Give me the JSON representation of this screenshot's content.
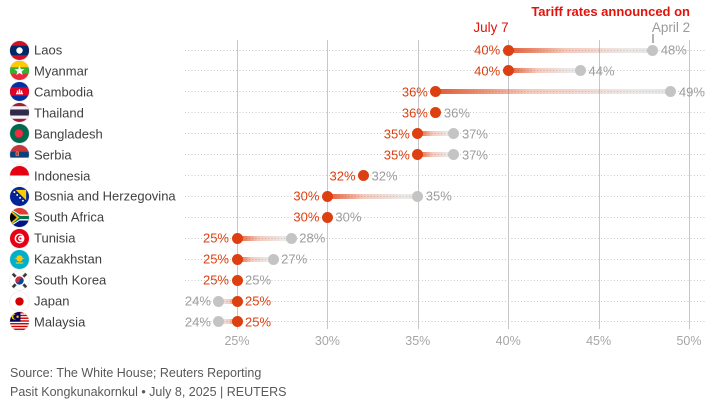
{
  "chart_data": {
    "type": "dumbbell",
    "title": "Tariff rates announced on",
    "series": [
      {
        "name": "July 7",
        "color": "#dd3f10"
      },
      {
        "name": "April 2",
        "color": "#c4c4c4"
      }
    ],
    "x_ticks": [
      "25%",
      "30%",
      "35%",
      "40%",
      "45%",
      "50%"
    ],
    "x_range": [
      25,
      50
    ],
    "unit": "%",
    "legend_position": "top",
    "grid": "vertical solid gridlines, dotted horizontal row leaders",
    "countries": [
      {
        "name": "Laos",
        "flag": "laos",
        "july7": 40,
        "april2": 48
      },
      {
        "name": "Myanmar",
        "flag": "myanmar",
        "july7": 40,
        "april2": 44
      },
      {
        "name": "Cambodia",
        "flag": "cambodia",
        "july7": 36,
        "april2": 49
      },
      {
        "name": "Thailand",
        "flag": "thailand",
        "july7": 36,
        "april2": 36
      },
      {
        "name": "Bangladesh",
        "flag": "bangladesh",
        "july7": 35,
        "april2": 37
      },
      {
        "name": "Serbia",
        "flag": "serbia",
        "july7": 35,
        "april2": 37
      },
      {
        "name": "Indonesia",
        "flag": "indonesia",
        "july7": 32,
        "april2": 32
      },
      {
        "name": "Bosnia and Herzegovina",
        "flag": "bosnia",
        "july7": 30,
        "april2": 35
      },
      {
        "name": "South Africa",
        "flag": "south-africa",
        "july7": 30,
        "april2": 30
      },
      {
        "name": "Tunisia",
        "flag": "tunisia",
        "july7": 25,
        "april2": 28
      },
      {
        "name": "Kazakhstan",
        "flag": "kazakhstan",
        "july7": 25,
        "april2": 27
      },
      {
        "name": "South Korea",
        "flag": "south-korea",
        "july7": 25,
        "april2": 25
      },
      {
        "name": "Japan",
        "flag": "japan",
        "july7": 25,
        "april2": 24
      },
      {
        "name": "Malaysia",
        "flag": "malaysia",
        "july7": 25,
        "april2": 24
      }
    ]
  },
  "colors": {
    "july7": "#dd3f10",
    "april2_dot": "#c4c4c4",
    "april2_label": "#9c9c9c",
    "title_red": "#e3120b",
    "country_label": "#404040",
    "axis_label": "#a6a6a6",
    "gridline": "#c7c7c7",
    "dotted_leader": "#c9c9c9",
    "source_text": "#58595b"
  },
  "source": {
    "line1": "Source: The White House; Reuters Reporting",
    "line2": "Pasit Kongkunakornkul • July 8, 2025 | REUTERS"
  }
}
